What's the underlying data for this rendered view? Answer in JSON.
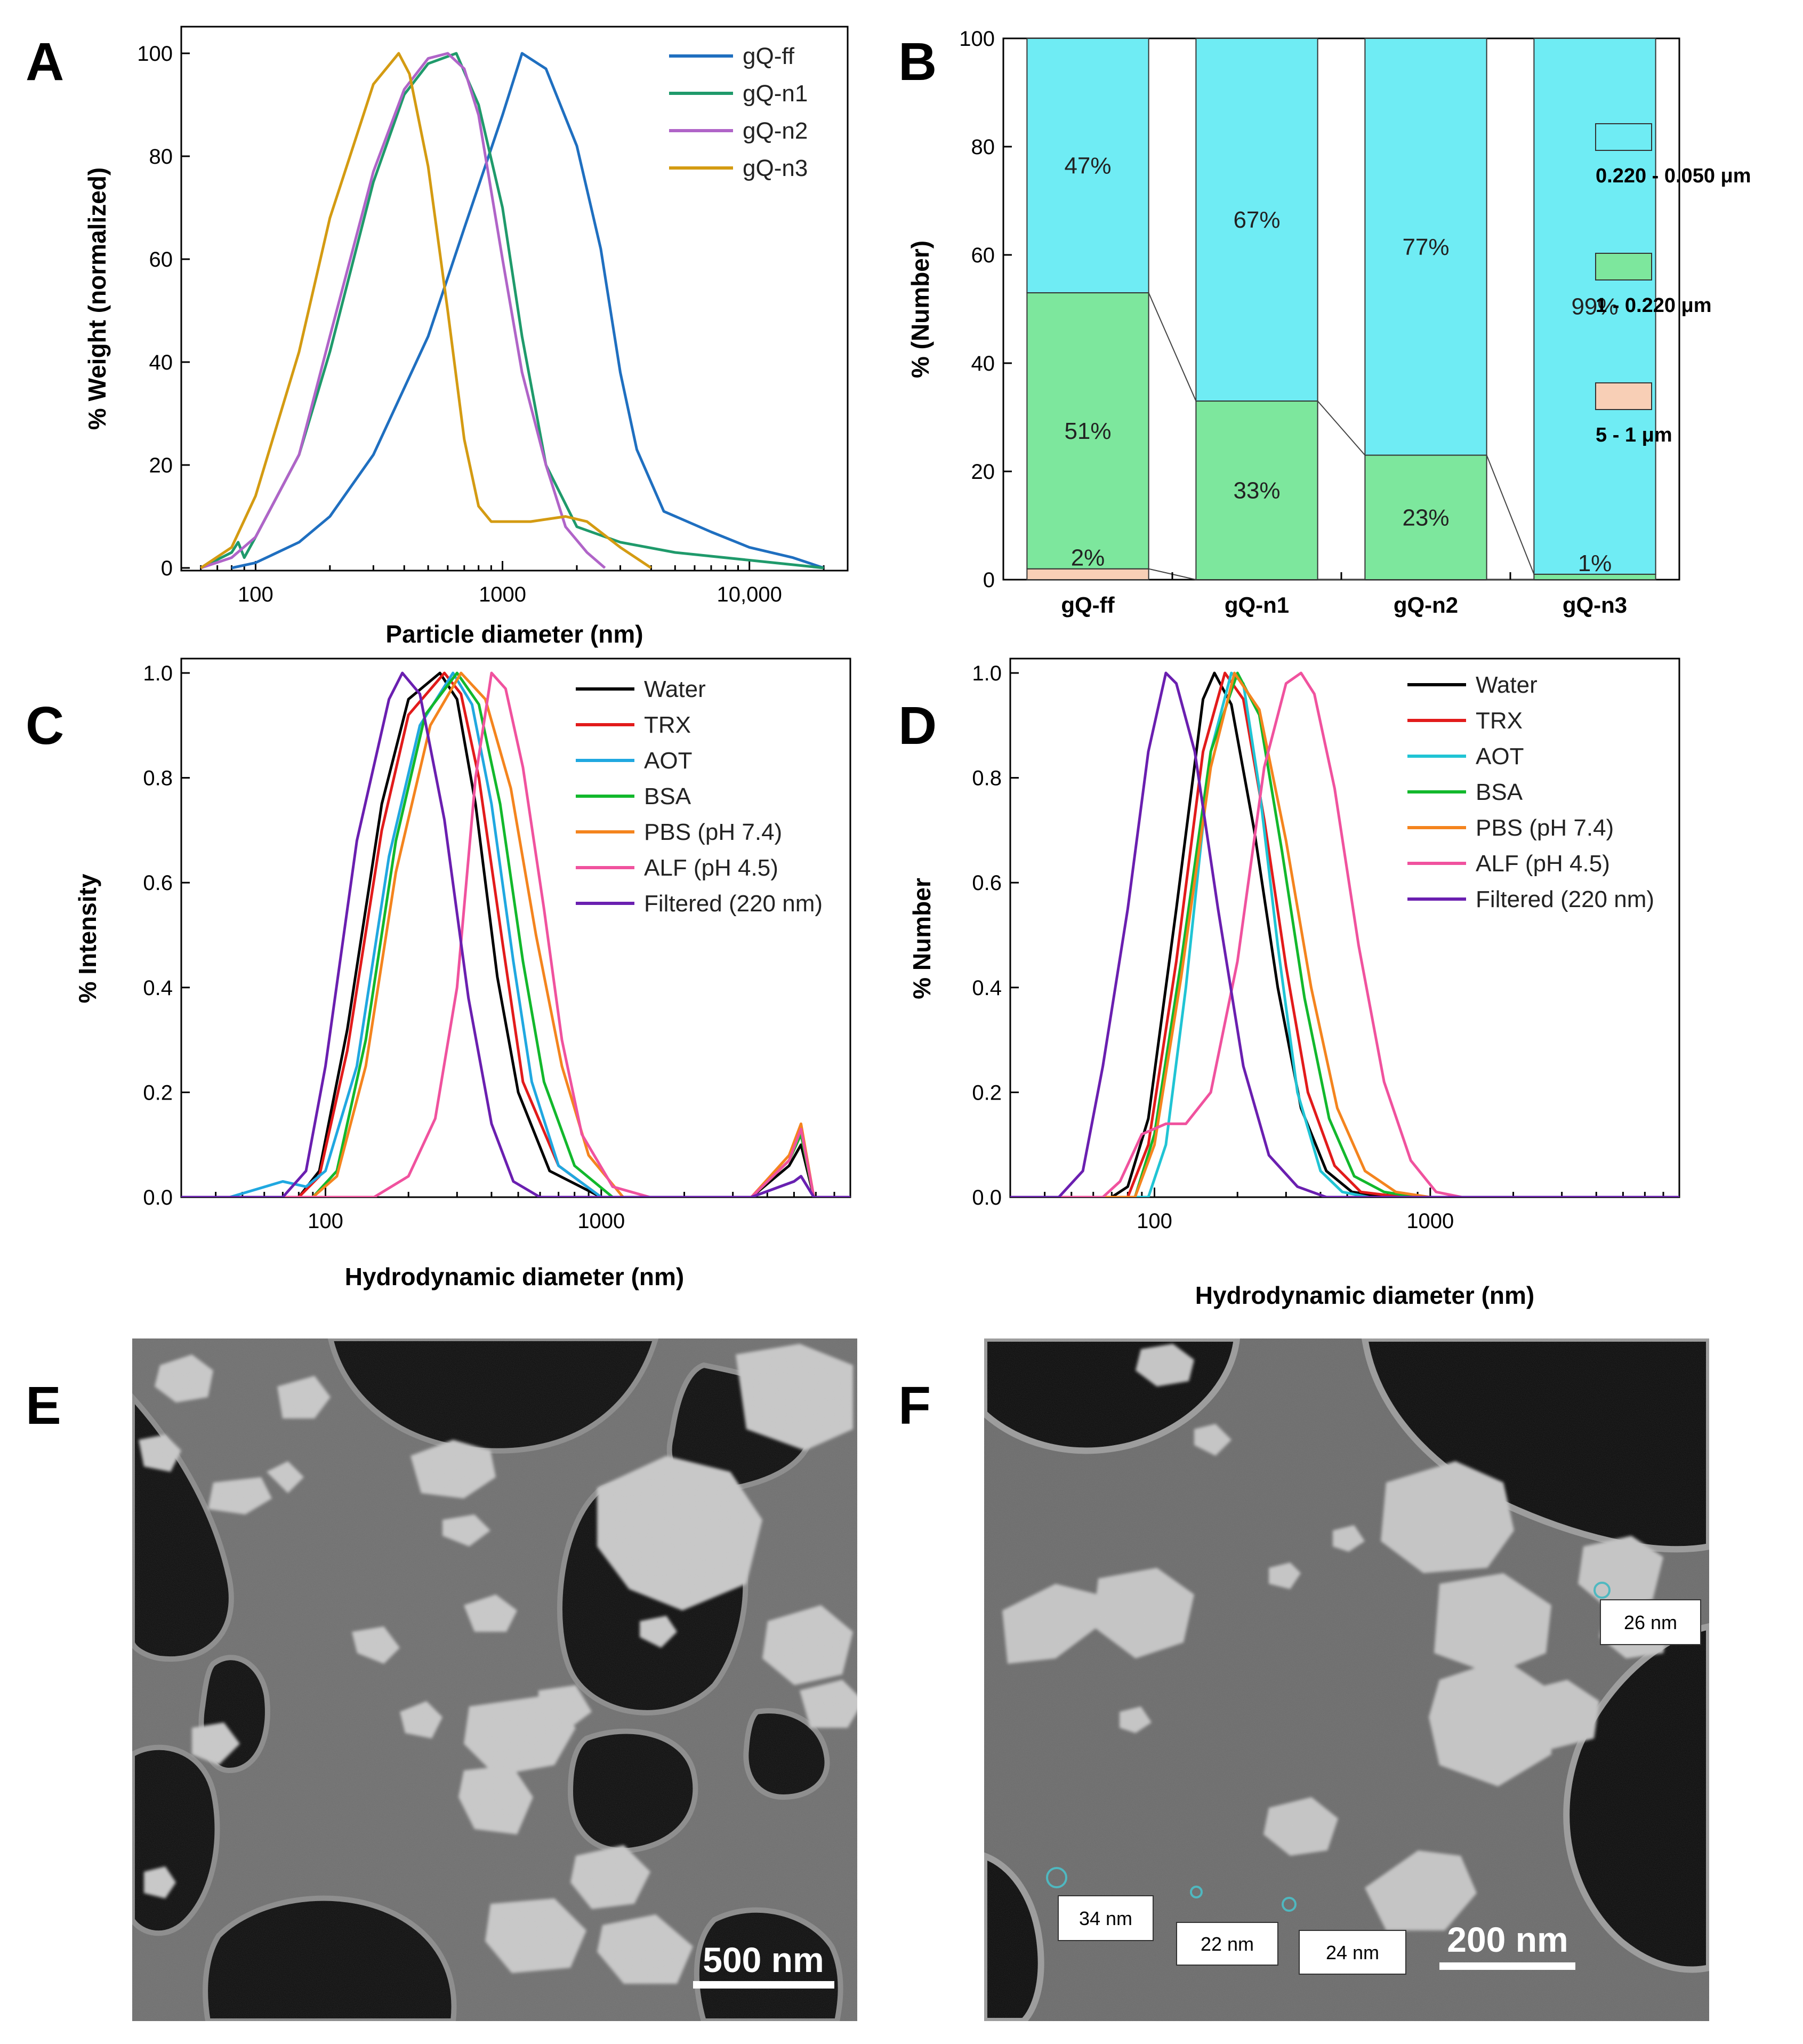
{
  "panels": {
    "A": "A",
    "B": "B",
    "C": "C",
    "D": "D",
    "E": "E",
    "F": "F"
  },
  "chart_data": [
    {
      "panel": "A",
      "type": "line",
      "xscale": "log",
      "xlim": [
        50,
        25000
      ],
      "ylim": [
        0,
        100
      ],
      "xlabel": "Particle diameter (nm)",
      "ylabel": "% Weight (normalized)",
      "xticks": [
        {
          "v": 100,
          "t": "100"
        },
        {
          "v": 1000,
          "t": "1000"
        },
        {
          "v": 10000,
          "t": "10,000"
        }
      ],
      "yticks": [
        {
          "v": 0,
          "t": "0"
        },
        {
          "v": 20,
          "t": "20"
        },
        {
          "v": 40,
          "t": "40"
        },
        {
          "v": 60,
          "t": "60"
        },
        {
          "v": 80,
          "t": "80"
        },
        {
          "v": 100,
          "t": "100"
        }
      ],
      "legend_position": "top-right",
      "series": [
        {
          "name": "gQ-ff",
          "color": "#1f6fc0",
          "x": [
            80,
            100,
            150,
            200,
            300,
            500,
            700,
            1000,
            1200,
            1500,
            2000,
            2500,
            3000,
            3500,
            4500,
            7000,
            10000,
            15000,
            20000
          ],
          "y": [
            0,
            1,
            5,
            10,
            22,
            45,
            66,
            88,
            100,
            97,
            82,
            62,
            38,
            23,
            11,
            7,
            4,
            2,
            0
          ]
        },
        {
          "name": "gQ-n1",
          "color": "#1f9a6b",
          "x": [
            60,
            80,
            85,
            90,
            100,
            150,
            200,
            300,
            400,
            500,
            650,
            800,
            1000,
            1200,
            1500,
            2000,
            3000,
            5000,
            10000,
            20000
          ],
          "y": [
            0,
            3,
            5,
            2,
            6,
            22,
            42,
            75,
            92,
            98,
            100,
            90,
            70,
            45,
            20,
            8,
            5,
            3,
            1.5,
            0
          ]
        },
        {
          "name": "gQ-n2",
          "color": "#b064c8",
          "x": [
            60,
            80,
            100,
            150,
            200,
            300,
            400,
            500,
            600,
            700,
            800,
            1000,
            1200,
            1500,
            1800,
            2200,
            2600
          ],
          "y": [
            0,
            2,
            6,
            22,
            45,
            77,
            93,
            99,
            100,
            97,
            88,
            60,
            38,
            20,
            8,
            3,
            0
          ]
        },
        {
          "name": "gQ-n3",
          "color": "#d49b12",
          "x": [
            60,
            80,
            100,
            150,
            200,
            300,
            380,
            420,
            500,
            600,
            700,
            800,
            900,
            1000,
            1300,
            1800,
            2200,
            3000,
            4000
          ],
          "y": [
            0,
            4,
            14,
            42,
            68,
            94,
            100,
            96,
            78,
            50,
            25,
            12,
            9,
            9,
            9,
            10,
            9,
            4,
            0
          ]
        }
      ]
    },
    {
      "panel": "B",
      "type": "bar",
      "stacked": true,
      "ylabel": "% (Number)",
      "ylim": [
        0,
        100
      ],
      "yticks": [
        {
          "v": 0,
          "t": "0"
        },
        {
          "v": 20,
          "t": "20"
        },
        {
          "v": 40,
          "t": "40"
        },
        {
          "v": 60,
          "t": "60"
        },
        {
          "v": 80,
          "t": "80"
        },
        {
          "v": 100,
          "t": "100"
        }
      ],
      "categories": [
        "gQ-ff",
        "gQ-n1",
        "gQ-n2",
        "gQ-n3"
      ],
      "legend_position": "right",
      "series": [
        {
          "name": "5 - 1 μm",
          "color": "#f8cfb6",
          "values": [
            2,
            0,
            0,
            0
          ]
        },
        {
          "name": "1 - 0.220 μm",
          "color": "#7de79d",
          "values": [
            51,
            33,
            23,
            1
          ]
        },
        {
          "name": "0.220 - 0.050 μm",
          "color": "#6fecf4",
          "values": [
            47,
            67,
            77,
            99
          ]
        }
      ],
      "value_labels": [
        {
          "category": "gQ-ff",
          "value": 2,
          "text": "2%"
        },
        {
          "category": "gQ-ff",
          "value": 51,
          "text": "51%"
        },
        {
          "category": "gQ-ff",
          "value": 47,
          "text": "47%"
        },
        {
          "category": "gQ-n1",
          "value": 33,
          "text": "33%"
        },
        {
          "category": "gQ-n1",
          "value": 67,
          "text": "67%"
        },
        {
          "category": "gQ-n2",
          "value": 23,
          "text": "23%"
        },
        {
          "category": "gQ-n2",
          "value": 77,
          "text": "77%"
        },
        {
          "category": "gQ-n3",
          "value": 1,
          "text": "1%"
        },
        {
          "category": "gQ-n3",
          "value": 99,
          "text": "99%"
        }
      ]
    },
    {
      "panel": "C",
      "type": "line",
      "xscale": "log",
      "xlim": [
        30,
        8000
      ],
      "ylim": [
        0,
        1.0
      ],
      "xlabel": "Hydrodynamic diameter (nm)",
      "ylabel": "% Intensity",
      "xticks": [
        {
          "v": 100,
          "t": "100"
        },
        {
          "v": 1000,
          "t": "1000"
        }
      ],
      "yticks": [
        {
          "v": 0,
          "t": "0.0"
        },
        {
          "v": 0.2,
          "t": "0.2"
        },
        {
          "v": 0.4,
          "t": "0.4"
        },
        {
          "v": 0.6,
          "t": "0.6"
        },
        {
          "v": 0.8,
          "t": "0.8"
        },
        {
          "v": 1.0,
          "t": "1.0"
        }
      ],
      "legend_position": "top-right",
      "series": [
        {
          "name": "Water",
          "color": "#000000",
          "x": [
            30,
            80,
            95,
            120,
            160,
            200,
            260,
            300,
            350,
            420,
            500,
            650,
            1000,
            3500,
            4800,
            5300,
            5900,
            8000
          ],
          "y": [
            0,
            0,
            0.05,
            0.32,
            0.75,
            0.95,
            1.0,
            0.95,
            0.75,
            0.42,
            0.2,
            0.05,
            0,
            0,
            0.06,
            0.1,
            0,
            0
          ]
        },
        {
          "name": "TRX",
          "color": "#e21b1b",
          "x": [
            30,
            80,
            95,
            120,
            160,
            200,
            270,
            310,
            360,
            440,
            520,
            700,
            1000,
            3500,
            4800,
            5300,
            5900,
            8000
          ],
          "y": [
            0,
            0,
            0.04,
            0.28,
            0.7,
            0.92,
            1.0,
            0.96,
            0.8,
            0.48,
            0.22,
            0.06,
            0,
            0,
            0.07,
            0.12,
            0,
            0
          ]
        },
        {
          "name": "AOT",
          "color": "#20a8e0",
          "x": [
            30,
            45,
            70,
            85,
            100,
            130,
            170,
            220,
            290,
            340,
            400,
            480,
            560,
            700,
            1000,
            3500,
            5000,
            5300,
            5900,
            8000
          ],
          "y": [
            0,
            0,
            0.03,
            0.02,
            0.05,
            0.25,
            0.65,
            0.9,
            1.0,
            0.94,
            0.75,
            0.45,
            0.22,
            0.06,
            0,
            0,
            0.03,
            0.04,
            0,
            0
          ]
        },
        {
          "name": "BSA",
          "color": "#12b82c",
          "x": [
            30,
            90,
            110,
            140,
            180,
            230,
            300,
            360,
            430,
            520,
            620,
            800,
            1100,
            3500,
            4800,
            5300,
            5900,
            8000
          ],
          "y": [
            0,
            0,
            0.05,
            0.3,
            0.68,
            0.92,
            1.0,
            0.94,
            0.75,
            0.45,
            0.22,
            0.06,
            0,
            0,
            0.07,
            0.12,
            0,
            0
          ]
        },
        {
          "name": "PBS (pH 7.4)",
          "color": "#f4841e",
          "x": [
            30,
            90,
            110,
            140,
            180,
            240,
            310,
            380,
            470,
            580,
            720,
            900,
            1200,
            3500,
            4800,
            5300,
            5900,
            8000
          ],
          "y": [
            0,
            0,
            0.04,
            0.25,
            0.62,
            0.9,
            1.0,
            0.95,
            0.78,
            0.5,
            0.25,
            0.08,
            0,
            0,
            0.08,
            0.14,
            0,
            0
          ]
        },
        {
          "name": "ALF (pH 4.5)",
          "color": "#f0529e",
          "x": [
            30,
            150,
            200,
            250,
            300,
            350,
            400,
            450,
            520,
            620,
            720,
            850,
            1100,
            1500,
            3500,
            4800,
            5300,
            5900,
            8000
          ],
          "y": [
            0,
            0,
            0.04,
            0.15,
            0.4,
            0.8,
            1.0,
            0.97,
            0.82,
            0.55,
            0.3,
            0.12,
            0.02,
            0,
            0,
            0.07,
            0.13,
            0,
            0
          ]
        },
        {
          "name": "Filtered (220 nm)",
          "color": "#6a1fb0",
          "x": [
            30,
            70,
            85,
            100,
            130,
            170,
            190,
            220,
            270,
            330,
            400,
            480,
            600,
            800,
            3500,
            5000,
            5300,
            5900,
            8000
          ],
          "y": [
            0,
            0,
            0.05,
            0.25,
            0.68,
            0.95,
            1.0,
            0.96,
            0.72,
            0.38,
            0.14,
            0.03,
            0,
            0,
            0,
            0.03,
            0.04,
            0,
            0
          ]
        }
      ]
    },
    {
      "panel": "D",
      "type": "line",
      "xscale": "log",
      "xlim": [
        30,
        8000
      ],
      "ylim": [
        0,
        1.0
      ],
      "xlabel": "Hydrodynamic diameter (nm)",
      "ylabel": "% Number",
      "xticks": [
        {
          "v": 100,
          "t": "100"
        },
        {
          "v": 1000,
          "t": "1000"
        }
      ],
      "yticks": [
        {
          "v": 0,
          "t": "0.0"
        },
        {
          "v": 0.2,
          "t": "0.2"
        },
        {
          "v": 0.4,
          "t": "0.4"
        },
        {
          "v": 0.6,
          "t": "0.6"
        },
        {
          "v": 0.8,
          "t": "0.8"
        },
        {
          "v": 1.0,
          "t": "1.0"
        }
      ],
      "legend_position": "top-right",
      "series": [
        {
          "name": "Water",
          "color": "#000000",
          "x": [
            30,
            70,
            80,
            95,
            120,
            150,
            165,
            190,
            230,
            280,
            340,
            420,
            520,
            700,
            8000
          ],
          "y": [
            0,
            0,
            0.02,
            0.15,
            0.55,
            0.95,
            1.0,
            0.94,
            0.7,
            0.4,
            0.17,
            0.05,
            0.01,
            0,
            0
          ]
        },
        {
          "name": "TRX",
          "color": "#e21b1b",
          "x": [
            30,
            80,
            95,
            120,
            150,
            180,
            210,
            250,
            300,
            360,
            450,
            560,
            800,
            8000
          ],
          "y": [
            0,
            0,
            0.1,
            0.45,
            0.85,
            1.0,
            0.95,
            0.72,
            0.44,
            0.2,
            0.06,
            0.01,
            0,
            0
          ]
        },
        {
          "name": "AOT",
          "color": "#20c4d4",
          "x": [
            30,
            95,
            110,
            130,
            160,
            190,
            210,
            240,
            280,
            330,
            400,
            480,
            600,
            8000
          ],
          "y": [
            0,
            0,
            0.1,
            0.4,
            0.85,
            1.0,
            0.98,
            0.78,
            0.48,
            0.2,
            0.05,
            0.01,
            0,
            0
          ]
        },
        {
          "name": "BSA",
          "color": "#12b82c",
          "x": [
            30,
            85,
            100,
            125,
            160,
            200,
            240,
            290,
            350,
            430,
            530,
            680,
            900,
            8000
          ],
          "y": [
            0,
            0,
            0.12,
            0.45,
            0.85,
            1.0,
            0.92,
            0.66,
            0.38,
            0.15,
            0.04,
            0.01,
            0,
            0
          ]
        },
        {
          "name": "PBS (pH 7.4)",
          "color": "#f4841e",
          "x": [
            30,
            85,
            100,
            125,
            160,
            195,
            240,
            300,
            370,
            460,
            580,
            750,
            1000,
            8000
          ],
          "y": [
            0,
            0,
            0.1,
            0.42,
            0.82,
            1.0,
            0.93,
            0.68,
            0.4,
            0.17,
            0.05,
            0.01,
            0,
            0
          ]
        },
        {
          "name": "ALF (pH 4.5)",
          "color": "#f0529e",
          "x": [
            30,
            65,
            75,
            90,
            110,
            130,
            160,
            200,
            250,
            300,
            340,
            380,
            450,
            550,
            680,
            850,
            1050,
            1300,
            8000
          ],
          "y": [
            0,
            0,
            0.03,
            0.12,
            0.14,
            0.14,
            0.2,
            0.45,
            0.82,
            0.98,
            1.0,
            0.96,
            0.78,
            0.48,
            0.22,
            0.07,
            0.01,
            0,
            0
          ]
        },
        {
          "name": "Filtered (220 nm)",
          "color": "#6a1fb0",
          "x": [
            30,
            45,
            55,
            65,
            80,
            95,
            110,
            120,
            140,
            170,
            210,
            260,
            330,
            420,
            550,
            8000
          ],
          "y": [
            0,
            0,
            0.05,
            0.25,
            0.55,
            0.85,
            1.0,
            0.98,
            0.85,
            0.55,
            0.25,
            0.08,
            0.02,
            0,
            0,
            0
          ]
        }
      ]
    }
  ],
  "micrographs": {
    "E": {
      "scale_bar": "500 nm"
    },
    "F": {
      "scale_bar": "200 nm",
      "measurements": [
        "26 nm",
        "34 nm",
        "22 nm",
        "24 nm"
      ]
    }
  }
}
